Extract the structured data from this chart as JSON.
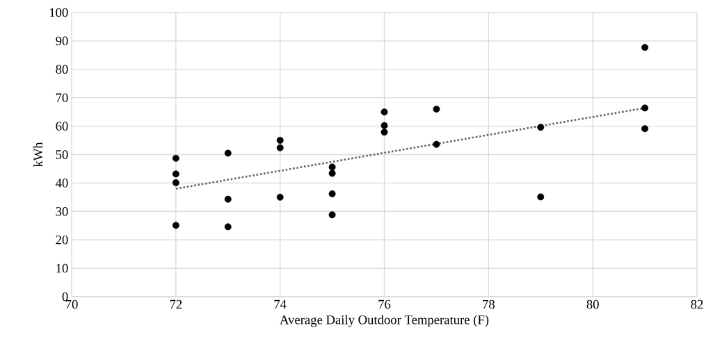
{
  "chart_data": {
    "type": "scatter",
    "xlabel": "Average Daily Outdoor Temperature (F)",
    "ylabel": "kWh",
    "xlim": [
      70,
      82
    ],
    "xticks": [
      70,
      72,
      74,
      76,
      78,
      80,
      82
    ],
    "ylim": [
      0,
      100
    ],
    "yticks": [
      0,
      10,
      20,
      30,
      40,
      50,
      60,
      70,
      80,
      90,
      100
    ],
    "grid": true,
    "series": [
      {
        "type": "scatter",
        "color": "#000000",
        "marker": "circle",
        "x": [
          72,
          72,
          72,
          72,
          73,
          73,
          73,
          74,
          74,
          74,
          75,
          75,
          75,
          75,
          76,
          76,
          76,
          77,
          77,
          79,
          79,
          81,
          81,
          81
        ],
        "values": [
          48.7,
          43.2,
          40.1,
          25.1,
          50.5,
          34.3,
          24.6,
          55.0,
          52.4,
          35.0,
          45.6,
          43.4,
          36.2,
          28.8,
          65.0,
          60.2,
          57.9,
          66.0,
          53.6,
          59.6,
          35.1,
          87.7,
          66.4,
          59.1
        ]
      },
      {
        "type": "line",
        "color": "#666666",
        "marker": "none",
        "line_style": "dotted",
        "x": [
          72,
          81
        ],
        "values": [
          38.0,
          66.4
        ]
      }
    ]
  }
}
